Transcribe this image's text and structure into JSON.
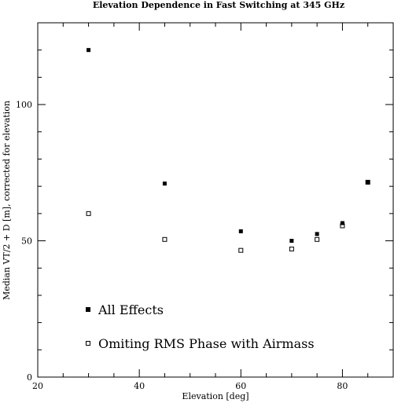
{
  "chart_data": {
    "type": "scatter",
    "title": "Elevation Dependence in Fast Switching at 345 GHz",
    "xlabel": "Elevation [deg]",
    "ylabel": "Median VT/2 + D [m], corrected for elevation",
    "xlim": [
      20,
      90
    ],
    "ylim": [
      0,
      130
    ],
    "x_ticks": [
      20,
      40,
      60,
      80
    ],
    "y_ticks": [
      0,
      50,
      100
    ],
    "x_tick_labels": [
      "20",
      "40",
      "60",
      "80"
    ],
    "y_tick_labels": [
      "0",
      "50",
      "100"
    ],
    "x_minor_step": 5,
    "y_minor_step": 10,
    "legend_position": "bottom-left",
    "series": [
      {
        "name": "All Effects",
        "marker": "filled-square",
        "color": "#000000",
        "points": [
          [
            30,
            120
          ],
          [
            45,
            71
          ],
          [
            60,
            53.5
          ],
          [
            70,
            50
          ],
          [
            75,
            52.5
          ],
          [
            80,
            56.5
          ],
          [
            85,
            71.5
          ]
        ]
      },
      {
        "name": "Omiting RMS Phase with Airmass",
        "marker": "open-square",
        "color": "#000000",
        "points": [
          [
            30,
            60
          ],
          [
            45,
            50.5
          ],
          [
            60,
            46.5
          ],
          [
            70,
            47
          ],
          [
            75,
            50.5
          ],
          [
            80,
            55.5
          ],
          [
            85,
            71.5
          ]
        ]
      }
    ]
  }
}
